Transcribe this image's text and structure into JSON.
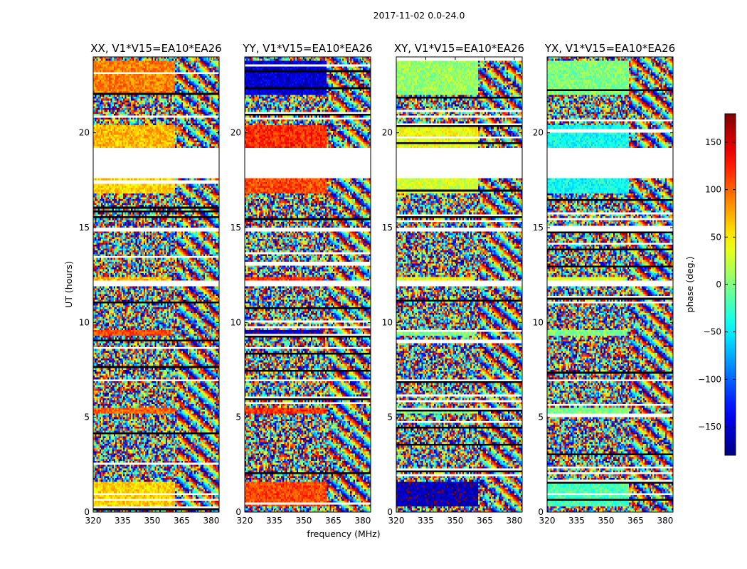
{
  "chart_data": {
    "type": "heatmap",
    "figure_title": "2017-11-02 0.0-24.0",
    "xlabel": "frequency (MHz)",
    "ylabel": "UT (hours)",
    "xlim": [
      320,
      384
    ],
    "ylim": [
      0,
      24
    ],
    "xticks": [
      320,
      335,
      350,
      365,
      380
    ],
    "xtick_labels": [
      "320",
      "335",
      "350",
      "365",
      "380"
    ],
    "yticks": [
      0,
      5,
      10,
      15,
      20
    ],
    "ytick_labels": [
      "0",
      "5",
      "10",
      "15",
      "20"
    ],
    "panels": [
      {
        "title": "XX, V1*V15=EA10*EA26"
      },
      {
        "title": "YY, V1*V15=EA10*EA26"
      },
      {
        "title": "XY, V1*V15=EA10*EA26"
      },
      {
        "title": "YX, V1*V15=EA10*EA26"
      }
    ],
    "colorbar": {
      "label": "phase (deg.)",
      "range": [
        -180,
        180
      ],
      "ticks": [
        -150,
        -100,
        -50,
        0,
        50,
        100,
        150
      ],
      "tick_labels": [
        "−150",
        "−100",
        "−50",
        "0",
        "50",
        "100",
        "150"
      ],
      "colormap": "jet"
    },
    "flagged_ut_ranges": [
      [
        19.2,
        17.6
      ],
      [
        12.2,
        11.9
      ],
      [
        15.0,
        14.8
      ],
      [
        7.0,
        6.9
      ]
    ]
  }
}
